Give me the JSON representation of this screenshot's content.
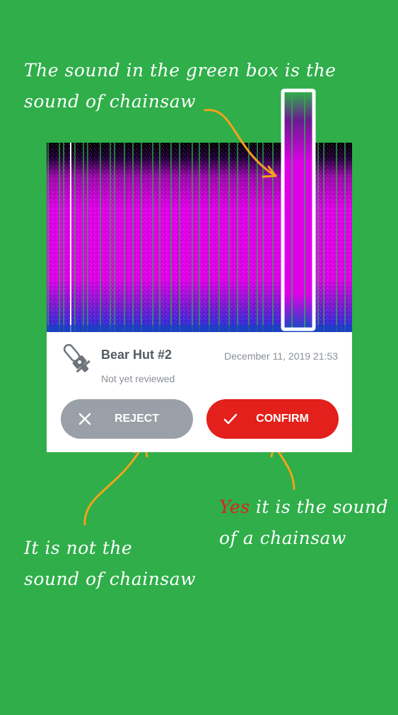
{
  "annotations": {
    "top": "The sound in the green box is the\nsound of chainsaw",
    "left": "It is not the\nsound of chainsaw",
    "right_highlight": "Yes",
    "right_rest": " it is the sound\nof a chainsaw"
  },
  "card": {
    "title": "Bear Hut #2",
    "date": "December 11, 2019 21:53",
    "status": "Not yet reviewed",
    "icon": "chainsaw-icon"
  },
  "buttons": {
    "reject_label": "REJECT",
    "confirm_label": "CONFIRM",
    "reject_icon": "close-icon",
    "confirm_icon": "check-icon"
  },
  "colors": {
    "background": "#2fae4a",
    "spectrogram": "#e000e8",
    "highlight_box": "#ffffff",
    "arrow": "#f2a31b",
    "reject": "#9aa0a8",
    "confirm": "#e3201b",
    "yes_text": "#e3201b"
  }
}
